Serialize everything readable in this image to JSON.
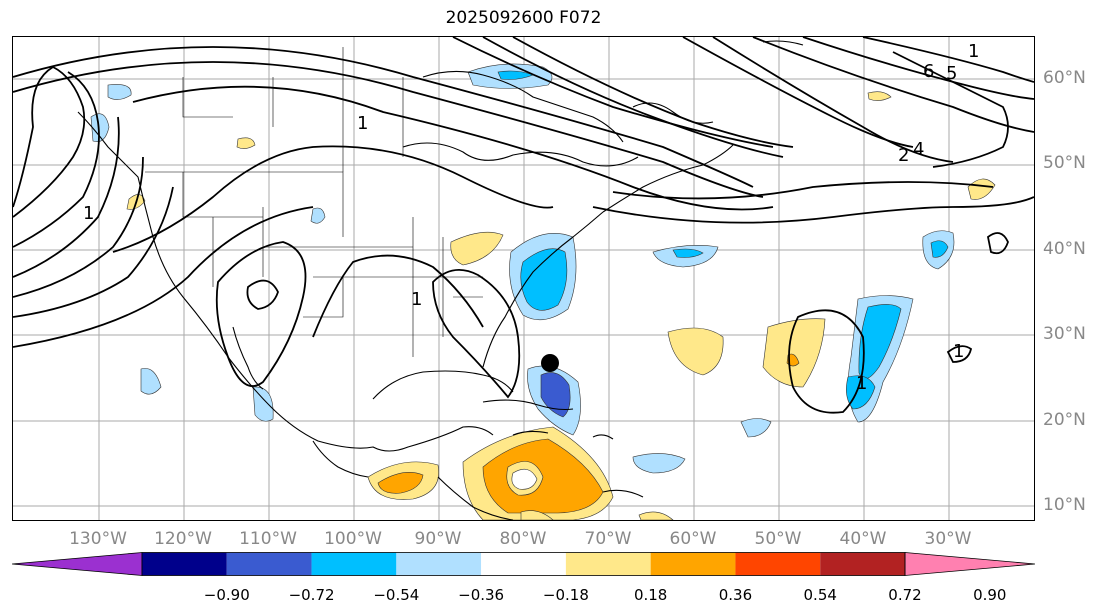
{
  "title": "2025092600 F072",
  "lat_labels": [
    "60°N",
    "50°N",
    "40°N",
    "30°N",
    "20°N",
    "10°N"
  ],
  "lon_labels": [
    "130°W",
    "120°W",
    "110°W",
    "100°W",
    "90°W",
    "80°W",
    "70°W",
    "60°W",
    "50°W",
    "40°W",
    "30°W"
  ],
  "colorbar": {
    "colors": [
      "#9b30d0",
      "#00008b",
      "#3a5bd0",
      "#00bfff",
      "#b0e0ff",
      "#ffffff",
      "#ffe88a",
      "#ffa500",
      "#ff4500",
      "#b22222",
      "#ff80b0"
    ],
    "labels": [
      "−0.90",
      "−0.72",
      "−0.54",
      "−0.36",
      "−0.18",
      "0.18",
      "0.36",
      "0.54",
      "0.72",
      "0.90"
    ]
  },
  "contour_labels": [
    "1",
    "2",
    "4",
    "6",
    "5",
    "1",
    "1",
    "1",
    "1",
    "1"
  ],
  "marker": {
    "name": "storm-center",
    "lon": -76.5,
    "lat": 26.5
  }
}
